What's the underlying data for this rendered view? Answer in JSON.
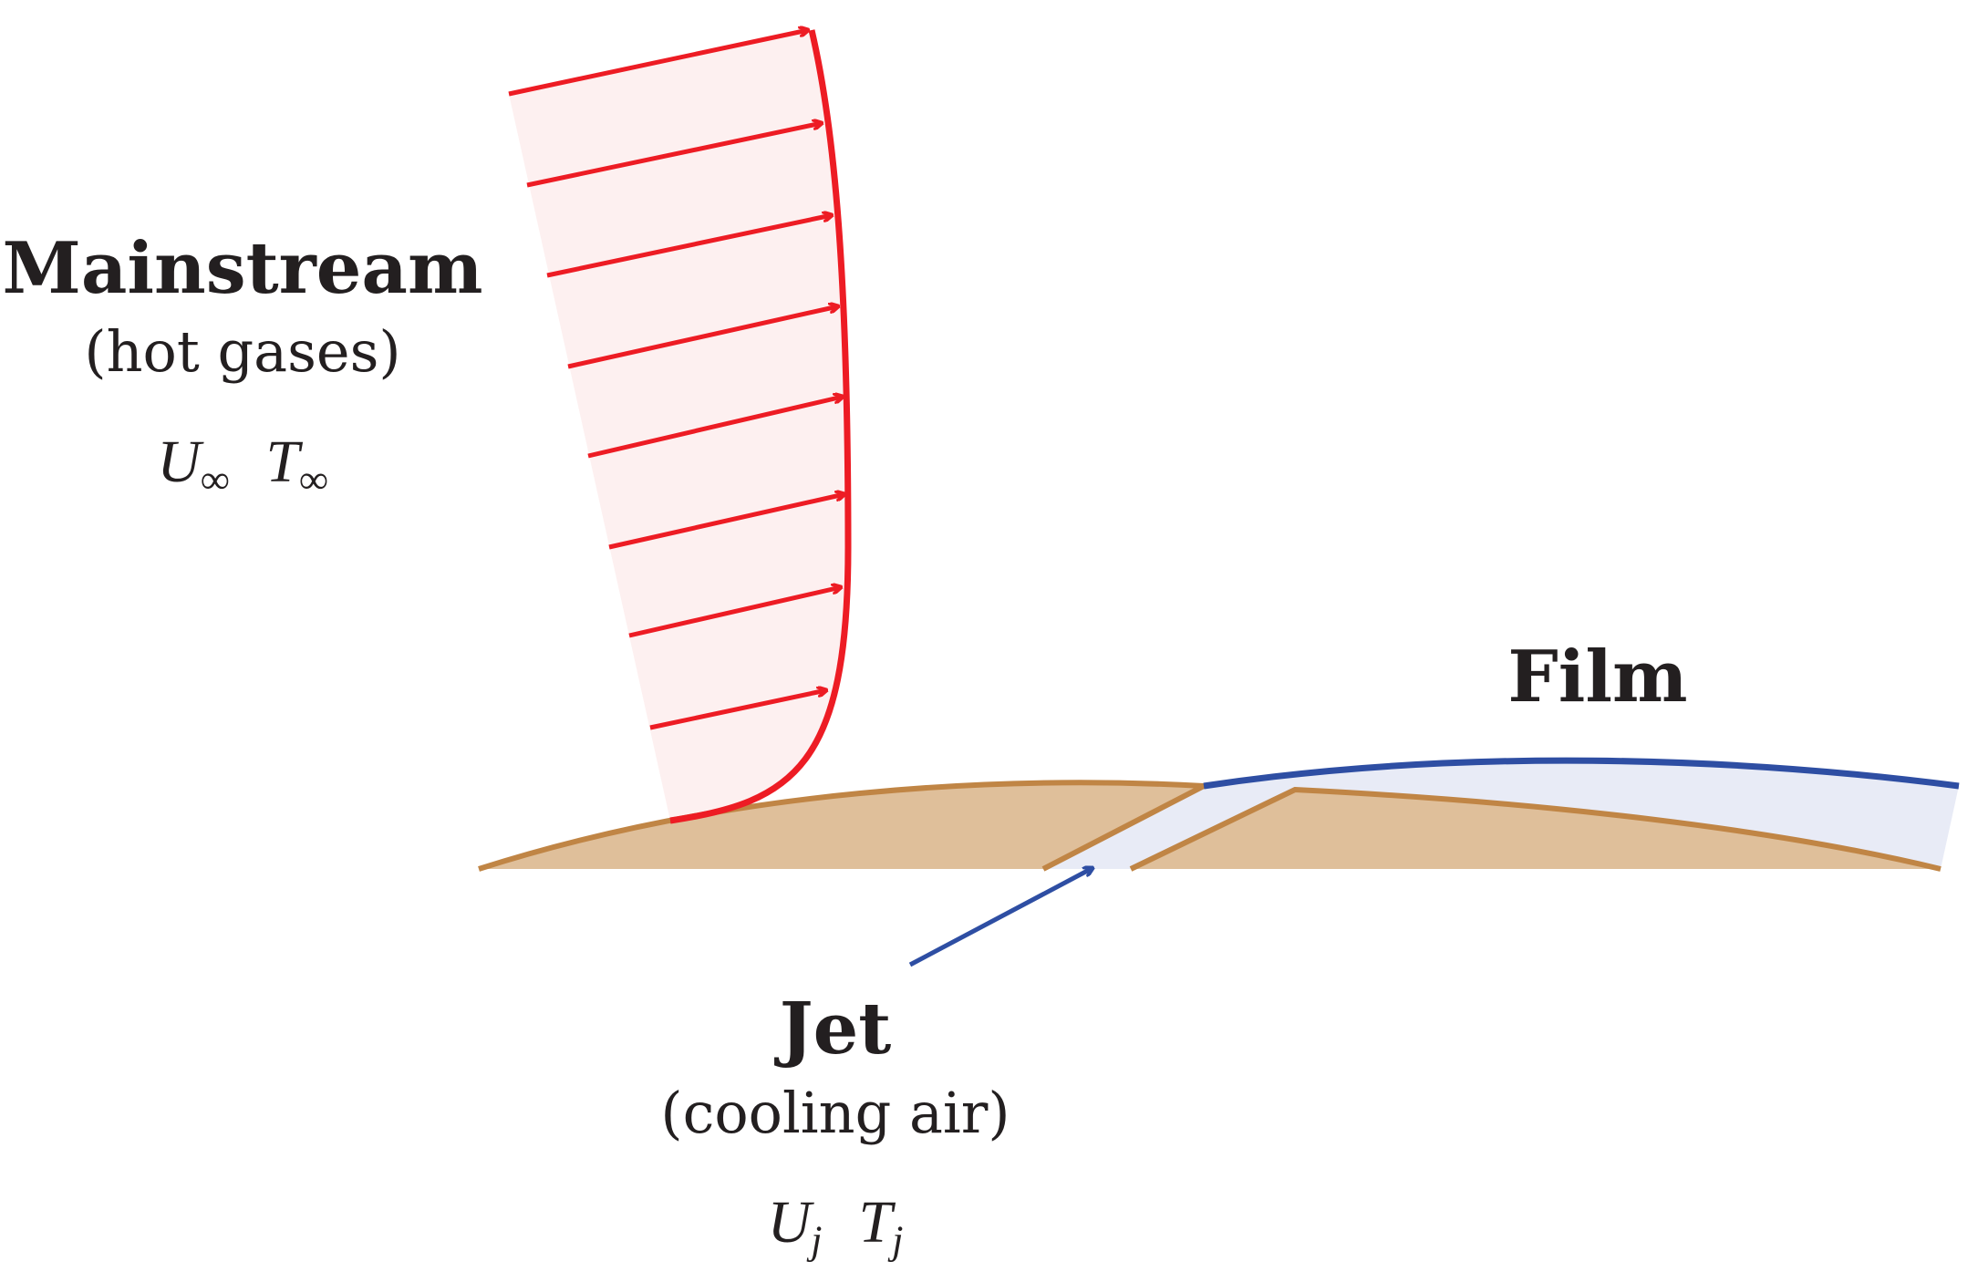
{
  "labels": {
    "mainstream": {
      "title": "Mainstream",
      "subtitle": "(hot gases)",
      "velocity_symbol": "U",
      "velocity_subscript": "∞",
      "temperature_symbol": "T",
      "temperature_subscript": "∞"
    },
    "film": {
      "title": "Film"
    },
    "jet": {
      "title": "Jet",
      "subtitle": "(cooling air)",
      "velocity_symbol": "U",
      "velocity_subscript": "j",
      "temperature_symbol": "T",
      "temperature_subscript": "j"
    }
  },
  "colors": {
    "mainstream_arrows": "#ed1c24",
    "mainstream_fill": "#fdf0f0",
    "film_line": "#2e4ea3",
    "film_fill": "#e8ebf6",
    "surface_fill": "#dfbf9a",
    "surface_edge": "#c08545",
    "text": "#231f20"
  }
}
